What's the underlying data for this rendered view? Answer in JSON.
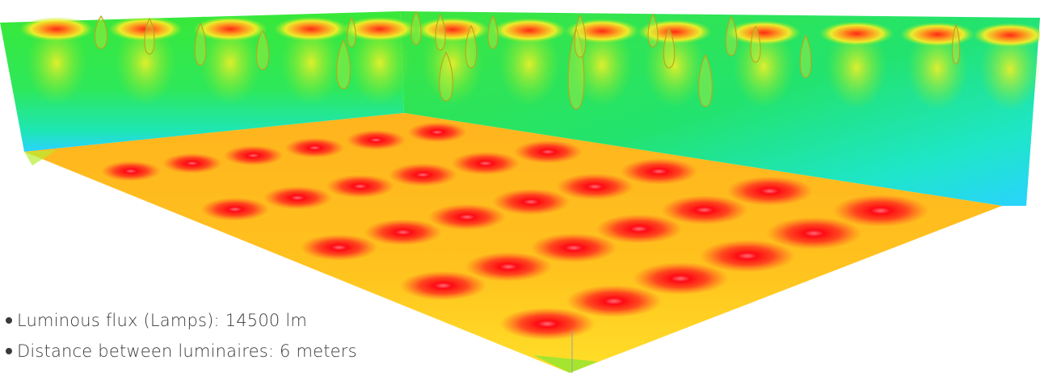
{
  "bullets": [
    {
      "text": "Luminous flux (Lamps): 14500 lm"
    },
    {
      "text": "Distance between luminaires: 6 meters"
    }
  ],
  "visualization": {
    "floor_grid": {
      "columns": 6,
      "rows": 5
    },
    "colors": {
      "hot": "#ff0a14",
      "high": "#ff5a1e",
      "mid": "#ffb41e",
      "low": "#ffee28",
      "wall": "#28e628",
      "cool": "#1ee6c8",
      "cold": "#2ad2ff"
    }
  }
}
